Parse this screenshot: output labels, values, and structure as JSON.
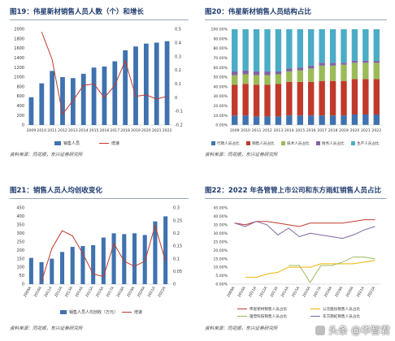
{
  "panels": [
    {
      "title": "图19：伟星新材销售人员人数（个）和增长",
      "source": "资料来源：同花顺，东兴证券研究所"
    },
    {
      "title": "图20：伟星新材销售人员结构占比",
      "source": "资料来源：同花顺，东兴证券研究所"
    },
    {
      "title": "图21：销售人员人均创收变化",
      "source": "资料来源：同花顺，东兴证券研究所"
    },
    {
      "title": "图22：2022 年各管管上市公司和东方雨虹销售人员占比",
      "source": "资料来源：同花顺，东兴证券研究所"
    }
  ],
  "watermark": "头条 @华智君",
  "colors": {
    "blue": "#3f72af",
    "red": "#c0392b",
    "green": "#9bbb59",
    "purple": "#8064a2",
    "cyan": "#4bacc6",
    "yellow": "#f0b400",
    "gray": "#7f7f7f"
  },
  "chart_data": [
    {
      "type": "bar+line",
      "categories": [
        "2009",
        "2010",
        "2011",
        "2012",
        "2013",
        "2014",
        "2015",
        "2016",
        "2017",
        "2018",
        "2019",
        "2020",
        "2021",
        "2022"
      ],
      "ylim": [
        0,
        2000
      ],
      "y2lim": [
        -0.2,
        0.5
      ],
      "yticks": [
        "0",
        "200",
        "400",
        "600",
        "800",
        "1000",
        "1200",
        "1400",
        "1600",
        "1800",
        "2000"
      ],
      "y2ticks": [
        "-0.2",
        "-0.1",
        "0",
        "0.1",
        "0.2",
        "0.3",
        "0.4",
        "0.5"
      ],
      "series": [
        {
          "name": "销售人员",
          "kind": "bar",
          "values": [
            580,
            870,
            1130,
            1000,
            980,
            1070,
            1200,
            1220,
            1330,
            1560,
            1640,
            1700,
            1720,
            1750
          ]
        },
        {
          "name": "增速",
          "kind": "line",
          "axis": "right",
          "values": [
            null,
            0.48,
            0.28,
            -0.12,
            -0.02,
            0.09,
            0.1,
            0.0,
            0.09,
            0.27,
            0.01,
            0.02,
            -0.01,
            0.01
          ]
        }
      ]
    },
    {
      "type": "stacked-bar",
      "categories": [
        "2009",
        "2010",
        "2011",
        "2012",
        "2013",
        "2014",
        "2015",
        "2016",
        "2017",
        "2018",
        "2019",
        "2020",
        "2021",
        "2022"
      ],
      "ylim": [
        0,
        1
      ],
      "yticks": [
        "0.00%",
        "10.00%",
        "20.00%",
        "30.00%",
        "40.00%",
        "50.00%",
        "60.00%",
        "70.00%",
        "80.00%",
        "90.00%",
        "100.00%"
      ],
      "series": [
        {
          "name": "行政人员占比",
          "values": [
            0.1,
            0.1,
            0.09,
            0.09,
            0.09,
            0.1,
            0.1,
            0.1,
            0.1,
            0.1,
            0.1,
            0.11,
            0.11,
            0.11
          ]
        },
        {
          "name": "销售人员占比",
          "values": [
            0.32,
            0.33,
            0.33,
            0.33,
            0.34,
            0.35,
            0.35,
            0.35,
            0.36,
            0.36,
            0.36,
            0.37,
            0.37,
            0.37
          ]
        },
        {
          "name": "技术人员占比",
          "values": [
            0.1,
            0.1,
            0.1,
            0.1,
            0.1,
            0.11,
            0.12,
            0.14,
            0.16,
            0.16,
            0.17,
            0.17,
            0.17,
            0.17
          ]
        },
        {
          "name": "财务人员占比",
          "values": [
            0.04,
            0.04,
            0.04,
            0.04,
            0.03,
            0.03,
            0.03,
            0.03,
            0.03,
            0.03,
            0.02,
            0.02,
            0.02,
            0.02
          ]
        },
        {
          "name": "生产人员占比",
          "values": [
            0.44,
            0.43,
            0.44,
            0.44,
            0.44,
            0.41,
            0.4,
            0.38,
            0.35,
            0.35,
            0.35,
            0.33,
            0.33,
            0.33
          ]
        }
      ]
    },
    {
      "type": "bar+line",
      "categories": [
        "2009A",
        "2010A",
        "2011A",
        "2012A",
        "2013A",
        "2014A",
        "2015A",
        "2016A",
        "2017A",
        "2018A",
        "2019A",
        "2020A",
        "2021A",
        "2022A"
      ],
      "ylim": [
        0,
        450
      ],
      "y2lim": [
        0,
        0.3
      ],
      "yticks": [
        "0",
        "50",
        "100",
        "150",
        "200",
        "250",
        "300",
        "350",
        "400",
        "450"
      ],
      "y2ticks": [
        "0",
        "0.05",
        "0.1",
        "0.15",
        "0.2",
        "0.25",
        "0.3"
      ],
      "series": [
        {
          "name": "销售人员人均创收（万元）",
          "kind": "bar",
          "values": [
            155,
            130,
            150,
            190,
            220,
            225,
            230,
            275,
            300,
            295,
            300,
            290,
            370,
            400
          ]
        },
        {
          "name": "增速",
          "kind": "line",
          "axis": "right",
          "values": [
            null,
            0.01,
            0.14,
            0.21,
            0.19,
            0.12,
            0.04,
            0.03,
            0.16,
            0.09,
            0.07,
            0.09,
            0.23,
            0.09
          ]
        }
      ]
    },
    {
      "type": "line",
      "categories": [
        "2009A",
        "2010A",
        "2011A",
        "2012A",
        "2013A",
        "2014A",
        "2015A",
        "2016A",
        "2017A",
        "2018A",
        "2019A",
        "2020A",
        "2021A",
        "2022A"
      ],
      "ylim": [
        0,
        0.45
      ],
      "yticks": [
        "0.00%",
        "5.00%",
        "10.00%",
        "15.00%",
        "20.00%",
        "25.00%",
        "30.00%",
        "35.00%",
        "40.00%",
        "45.00%"
      ],
      "series": [
        {
          "name": "伟星新材销售人员占比",
          "values": [
            0.36,
            0.35,
            0.37,
            0.37,
            0.36,
            0.35,
            0.34,
            0.36,
            0.36,
            0.36,
            0.36,
            0.37,
            0.38,
            0.38
          ]
        },
        {
          "name": "公元股份销售人员占比",
          "values": [
            null,
            0.04,
            0.04,
            0.06,
            0.07,
            0.1,
            0.1,
            0.1,
            0.12,
            0.12,
            0.12,
            0.12,
            0.13,
            0.14
          ]
        },
        {
          "name": "雄塑科技销售人员占比",
          "values": [
            null,
            null,
            null,
            null,
            null,
            0.11,
            0.11,
            0.01,
            0.11,
            0.11,
            0.13,
            0.16,
            0.16,
            0.15
          ]
        },
        {
          "name": "东方雨虹销售人员占比",
          "values": [
            0.36,
            0.34,
            0.37,
            0.35,
            0.29,
            0.33,
            0.28,
            0.3,
            0.29,
            0.28,
            0.27,
            0.29,
            0.32,
            0.34
          ]
        }
      ]
    }
  ]
}
